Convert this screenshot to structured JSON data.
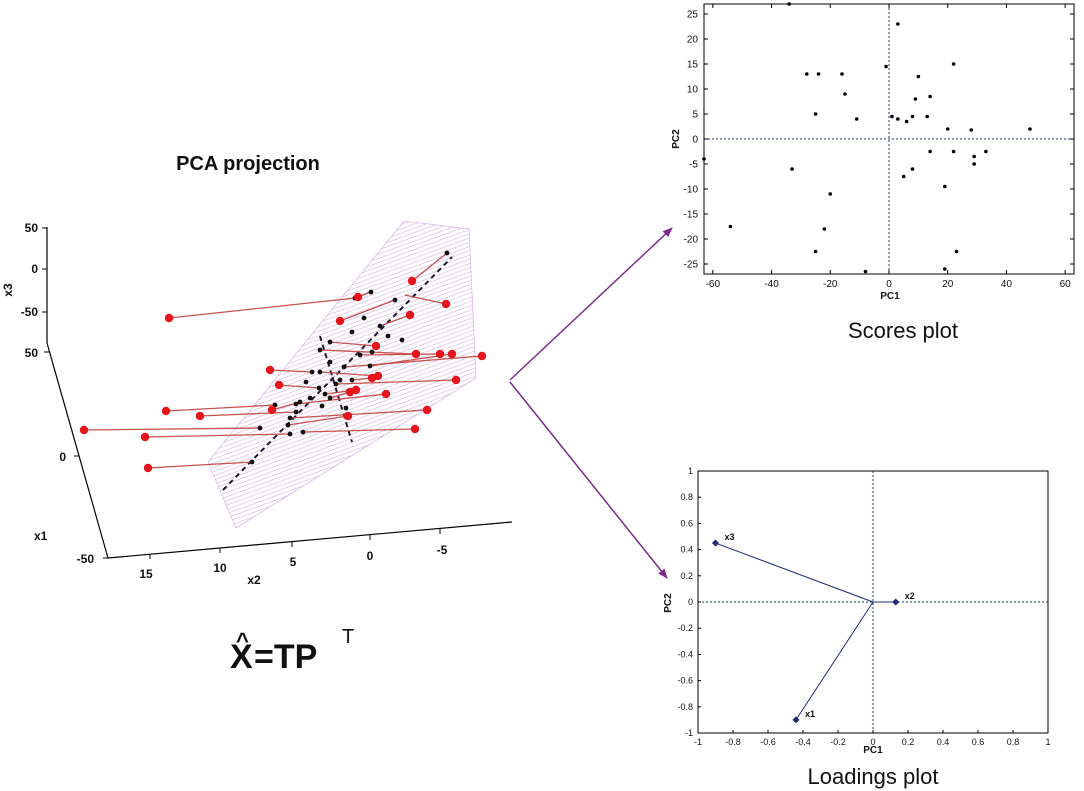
{
  "title": "PCA projection",
  "formula": {
    "xhat": "X",
    "hat": "^",
    "equals_tp": "=TP",
    "sup": "T"
  },
  "plot3d": {
    "x3_label": "x3",
    "x3_ticks": [
      "50",
      "0",
      "-50"
    ],
    "x1_label": "x1",
    "x1_ticks": [
      "50",
      "0",
      "-50"
    ],
    "x2_label": "x2",
    "x2_ticks": [
      "15",
      "10",
      "5",
      "0",
      "-5"
    ]
  },
  "scores": {
    "caption": "Scores plot",
    "xlabel": "PC1",
    "ylabel": "PC2",
    "xlim": [
      -63,
      63
    ],
    "ylim": [
      -27,
      27
    ],
    "xticks": [
      -60,
      -40,
      -20,
      0,
      20,
      40,
      60
    ],
    "yticks": [
      25,
      20,
      15,
      10,
      5,
      0,
      -5,
      -10,
      -15,
      -20,
      -25
    ],
    "points": [
      [
        -34,
        27
      ],
      [
        3,
        23
      ],
      [
        -28,
        13
      ],
      [
        -24,
        13
      ],
      [
        -16,
        13
      ],
      [
        -1,
        14.5
      ],
      [
        22,
        15
      ],
      [
        -15,
        9
      ],
      [
        10,
        12.5
      ],
      [
        9,
        8
      ],
      [
        14,
        8.5
      ],
      [
        -25,
        5
      ],
      [
        -11,
        4
      ],
      [
        1,
        4.5
      ],
      [
        3,
        4
      ],
      [
        6,
        3.5
      ],
      [
        8,
        4.5
      ],
      [
        13,
        4.5
      ],
      [
        20,
        2
      ],
      [
        28,
        1.8
      ],
      [
        48,
        2
      ],
      [
        -63,
        -4
      ],
      [
        -33,
        -6
      ],
      [
        5,
        -7.5
      ],
      [
        8,
        -6
      ],
      [
        14,
        -2.5
      ],
      [
        22,
        -2.5
      ],
      [
        29,
        -3.5
      ],
      [
        29,
        -5
      ],
      [
        33,
        -2.5
      ],
      [
        19,
        -9.5
      ],
      [
        -20,
        -11
      ],
      [
        -54,
        -17.5
      ],
      [
        -22,
        -18
      ],
      [
        -25,
        -22.5
      ],
      [
        23,
        -22.5
      ],
      [
        -8,
        -26.5
      ],
      [
        19,
        -26
      ]
    ]
  },
  "loadings": {
    "caption": "Loadings plot",
    "xlabel": "PC1",
    "ylabel": "PC2",
    "xlim": [
      -1,
      1
    ],
    "ylim": [
      -1,
      1
    ],
    "xticks": [
      "-1",
      "-0.8",
      "-0.6",
      "-0.4",
      "-0.2",
      "0",
      "0.2",
      "0.4",
      "0.6",
      "0.8",
      "1"
    ],
    "yticks": [
      "1",
      "0.8",
      "0.6",
      "0.4",
      "0.2",
      "0",
      "-0.2",
      "-0.4",
      "-0.6",
      "-0.8",
      "-1"
    ],
    "vectors": [
      {
        "name": "x3",
        "x": -0.9,
        "y": 0.45
      },
      {
        "name": "x2",
        "x": 0.13,
        "y": 0.0
      },
      {
        "name": "x1",
        "x": -0.44,
        "y": -0.9
      }
    ]
  },
  "colors": {
    "points": "#e8141b",
    "link": "#c8504e",
    "plane": "#c9a6da",
    "arrow": "#7a2a8c",
    "loading": "#1f2a7a"
  }
}
